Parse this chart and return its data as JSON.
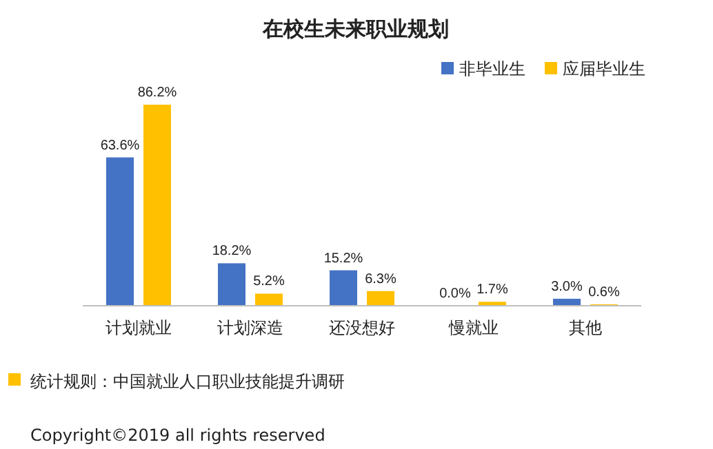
{
  "chart_data": {
    "type": "bar",
    "title": "在校生未来职业规划",
    "categories": [
      "计划就业",
      "计划深造",
      "还没想好",
      "慢就业",
      "其他"
    ],
    "series": [
      {
        "name": "非毕业生",
        "color": "#4472c4",
        "values": [
          63.6,
          18.2,
          15.2,
          0.0,
          3.0
        ],
        "value_labels": [
          "63.6%",
          "18.2%",
          "15.2%",
          "0.0%",
          "3.0%"
        ]
      },
      {
        "name": "应届毕业生",
        "color": "#ffc000",
        "values": [
          86.2,
          5.2,
          6.3,
          1.7,
          0.6
        ],
        "value_labels": [
          "86.2%",
          "5.2%",
          "6.3%",
          "1.7%",
          "0.6%"
        ]
      }
    ],
    "relative": false,
    "legend": "top right",
    "annotations": [
      "统计规则：中国就业人口职业技能提升调研",
      "Copyright©2019 all rights reserved"
    ]
  }
}
